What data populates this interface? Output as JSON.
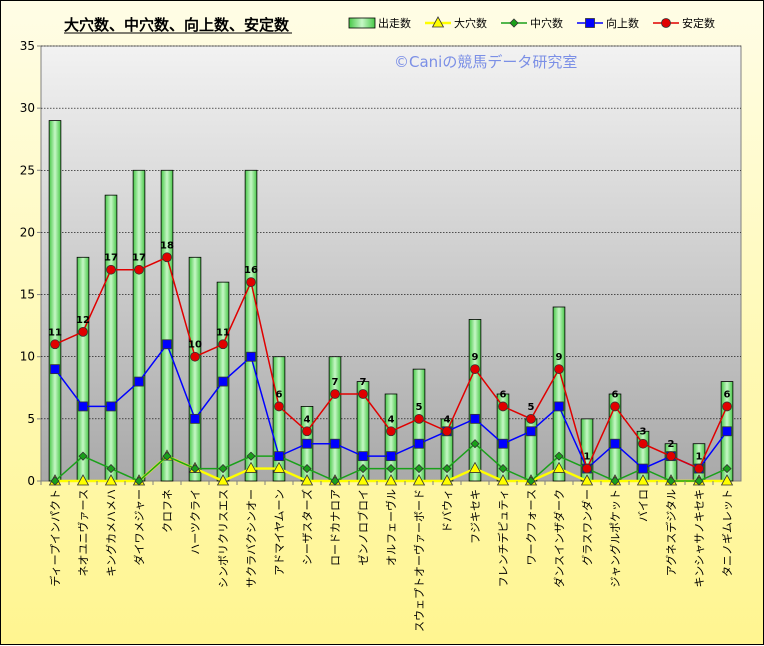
{
  "chart_data": {
    "type": "bar",
    "title": "大穴数、中穴数、向上数、安定数",
    "watermark": "©Caniの競馬データ研究室",
    "ylim": [
      0,
      35
    ],
    "yticks": [
      0,
      5,
      10,
      15,
      20,
      25,
      30,
      35
    ],
    "grid": true,
    "legend_position": "top-right",
    "categories": [
      "ディープインパクト",
      "ネオユニヴァース",
      "キングカメハメハ",
      "ダイワメジャー",
      "クロフネ",
      "ハーツクライ",
      "シンボリクリスエス",
      "サクラバクシンオー",
      "アドマイヤムーン",
      "シーザスターズ",
      "ロードカナロア",
      "ゼンノロブロイ",
      "オルフェーヴル",
      "スウェプトオーヴァーボード",
      "ドバウィ",
      "フジキセキ",
      "フレンチデピュティ",
      "ワークフォース",
      "ダンスインザダーク",
      "グラスワンダー",
      "ジャングルポケット",
      "バイロ",
      "アグネスデジタル",
      "キンシャサノキセキ",
      "タニノギムレット"
    ],
    "series": [
      {
        "name": "出走数",
        "type": "bar",
        "color": "#7ee07e",
        "values": [
          29,
          18,
          23,
          25,
          25,
          18,
          16,
          25,
          10,
          6,
          10,
          8,
          7,
          9,
          5,
          13,
          7,
          5,
          14,
          5,
          7,
          4,
          3,
          3,
          8
        ]
      },
      {
        "name": "大穴数",
        "type": "line",
        "color": "#ffff00",
        "marker": "triangle",
        "values": [
          0,
          0,
          0,
          0,
          2,
          1,
          0,
          1,
          1,
          0,
          0,
          0,
          0,
          0,
          0,
          1,
          0,
          0,
          1,
          0,
          0,
          0,
          0,
          0,
          0
        ]
      },
      {
        "name": "中穴数",
        "type": "line",
        "color": "#1aa01a",
        "marker": "diamond",
        "values": [
          0,
          2,
          1,
          0,
          2,
          1,
          1,
          2,
          2,
          1,
          0,
          1,
          1,
          1,
          1,
          3,
          1,
          0,
          2,
          1,
          0,
          1,
          0,
          0,
          1
        ]
      },
      {
        "name": "向上数",
        "type": "line",
        "color": "#0000ff",
        "marker": "square",
        "values": [
          9,
          6,
          6,
          8,
          11,
          5,
          8,
          10,
          2,
          3,
          3,
          2,
          2,
          3,
          4,
          5,
          3,
          4,
          6,
          1,
          3,
          1,
          2,
          1,
          4
        ]
      },
      {
        "name": "安定数",
        "type": "line",
        "color": "#e00000",
        "marker": "circle",
        "values": [
          11,
          12,
          17,
          17,
          18,
          10,
          11,
          16,
          6,
          4,
          7,
          7,
          4,
          5,
          4,
          9,
          6,
          5,
          9,
          1,
          6,
          3,
          2,
          1,
          6
        ]
      }
    ]
  }
}
